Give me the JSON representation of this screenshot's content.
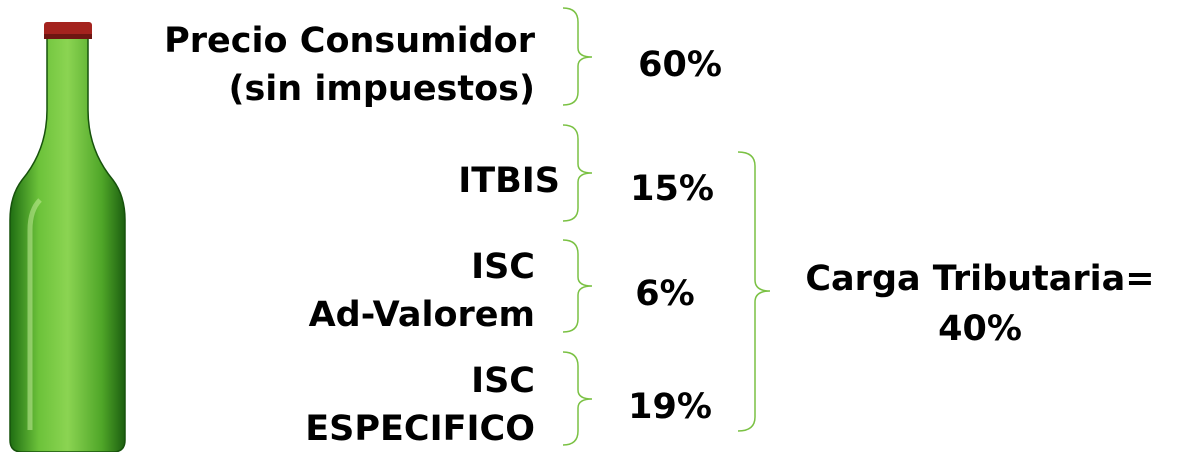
{
  "rows": [
    {
      "label": [
        "Precio Consumidor",
        "(sin impuestos)"
      ],
      "value": "60%"
    },
    {
      "label": [
        "ITBIS"
      ],
      "value": "15%"
    },
    {
      "label": [
        "ISC",
        "Ad-Valorem"
      ],
      "value": "6%"
    },
    {
      "label": [
        "ISC",
        "ESPECIFICO"
      ],
      "value": "19%"
    }
  ],
  "total": {
    "label": "Carga Tributaria=",
    "value": "40%"
  }
}
